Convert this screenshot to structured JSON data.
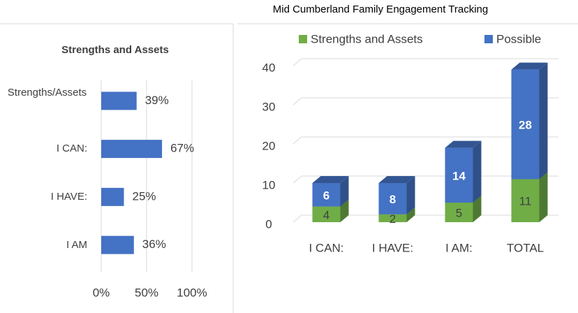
{
  "chart_data": [
    {
      "type": "hbar",
      "title": "Strengths and Assets",
      "categories": [
        "Strengths/Assets",
        "I CAN:",
        "I HAVE:",
        "I AM"
      ],
      "values": [
        39,
        67,
        25,
        36
      ],
      "value_labels": [
        "39%",
        "67%",
        "25%",
        "36%"
      ],
      "color": "#4472c4",
      "xlim": [
        0,
        100
      ],
      "xticks": [
        {
          "value": 0,
          "label": "0%"
        },
        {
          "value": 50,
          "label": "50%"
        },
        {
          "value": 100,
          "label": "100%"
        }
      ],
      "grid": true
    },
    {
      "type": "stacked-bar-3d",
      "title": "Mid Cumberland Family Engagement Tracking",
      "categories": [
        "I CAN:",
        "I HAVE:",
        "I AM:",
        "TOTAL"
      ],
      "series": [
        {
          "name": "Strengths and Assets",
          "color": "#70ad47",
          "values": [
            4,
            2,
            5,
            11
          ]
        },
        {
          "name": "Possible",
          "color": "#4472c4",
          "values": [
            6,
            8,
            14,
            28
          ]
        }
      ],
      "ylim": [
        0,
        40
      ],
      "yticks": [
        0,
        10,
        20,
        30,
        40
      ],
      "grid": true,
      "legend": "top"
    }
  ]
}
